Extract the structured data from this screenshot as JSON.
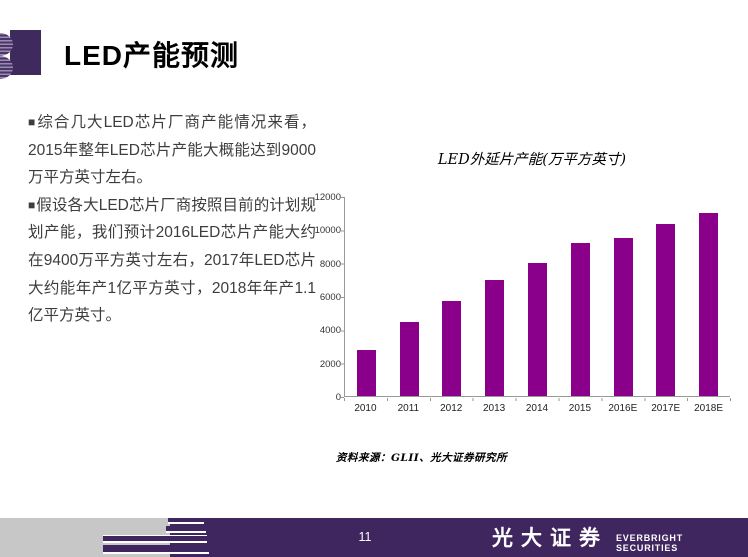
{
  "slide": {
    "title": "LED产能预测"
  },
  "body": {
    "paragraphs": [
      {
        "bullet": "■",
        "text": "综合几大LED芯片厂商产能情况来看，2015年整年LED芯片产能大概能达到9000万平方英寸左右。"
      },
      {
        "bullet": "■",
        "text": "假设各大LED芯片厂商按照目前的计划规划产能，我们预计2016LED芯片产能大约在9400万平方英寸左右，2017年LED芯片大约能年产1亿平方英寸，2018年年产1.1亿平方英寸。"
      }
    ]
  },
  "chart": {
    "source": "资料来源：GLII、光大证券研究所"
  },
  "chart_data": {
    "type": "bar",
    "title": "LED外延片产能(万平方英寸)",
    "categories": [
      "2010",
      "2011",
      "2012",
      "2013",
      "2014",
      "2015",
      "2016E",
      "2017E",
      "2018E"
    ],
    "values": [
      2800,
      4450,
      5750,
      7000,
      8000,
      9200,
      9500,
      10350,
      11050
    ],
    "xlabel": "",
    "ylabel": "",
    "ylim": [
      0,
      12000
    ],
    "ytick_interval": 2000,
    "grid": false,
    "legend": false,
    "bar_color": "#8B008B"
  },
  "footer": {
    "page_number": "11",
    "logo_cn": "光大证券",
    "logo_en": "EVERBRIGHT SECURITIES"
  },
  "colors": {
    "bar": "#8B008B",
    "header_square": "#3F2A5E",
    "footer_purple": "#40265F",
    "footer_gray": "#C7C7C7",
    "body_text": "#3D3D3D"
  }
}
